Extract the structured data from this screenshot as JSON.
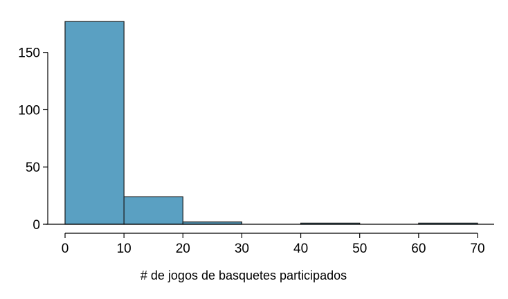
{
  "chart_data": {
    "type": "bar",
    "subtype": "histogram",
    "title": "",
    "xlabel": "# de jogos de basquetes participados",
    "ylabel": "",
    "bins": [
      {
        "start": 0,
        "end": 10,
        "count": 177
      },
      {
        "start": 10,
        "end": 20,
        "count": 24
      },
      {
        "start": 20,
        "end": 30,
        "count": 2
      },
      {
        "start": 30,
        "end": 40,
        "count": 0
      },
      {
        "start": 40,
        "end": 50,
        "count": 1
      },
      {
        "start": 50,
        "end": 60,
        "count": 0
      },
      {
        "start": 60,
        "end": 70,
        "count": 1
      }
    ],
    "xlim": [
      0,
      70
    ],
    "ylim": [
      0,
      177
    ],
    "x_ticks": [
      0,
      10,
      20,
      30,
      40,
      50,
      60,
      70
    ],
    "y_ticks": [
      0,
      50,
      100,
      150
    ],
    "bar_color": "#5aa0c2",
    "grid": false,
    "legend": "none"
  }
}
